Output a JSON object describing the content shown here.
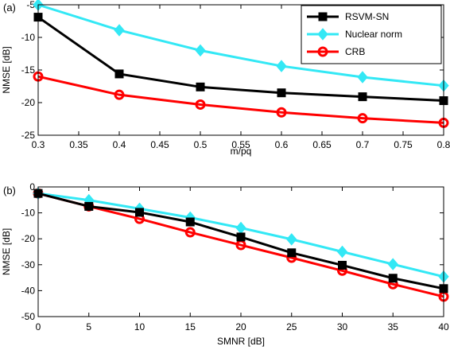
{
  "chart_data": [
    {
      "type": "line",
      "panel_label": "(a)",
      "xlabel": "m/pq",
      "ylabel": "NMSE [dB]",
      "xlim": [
        0.3,
        0.8
      ],
      "ylim": [
        -25,
        -5
      ],
      "xticks": [
        "0.3",
        "0.35",
        "0.4",
        "0.45",
        "0.5",
        "0.55",
        "0.6",
        "0.65",
        "0.7",
        "0.75",
        "0.8"
      ],
      "xtick_values": [
        0.3,
        0.35,
        0.4,
        0.45,
        0.5,
        0.55,
        0.6,
        0.65,
        0.7,
        0.75,
        0.8
      ],
      "yticks": [
        "-25",
        "-20",
        "-15",
        "-10",
        "-5"
      ],
      "ytick_values": [
        -25,
        -20,
        -15,
        -10,
        -5
      ],
      "grid": false,
      "legend_position": "top-right",
      "x": [
        0.3,
        0.4,
        0.5,
        0.6,
        0.7,
        0.8
      ],
      "series": [
        {
          "name": "RSVM-SN",
          "color": "#000000",
          "marker": "square",
          "values": [
            -6.9,
            -15.6,
            -17.6,
            -18.5,
            -19.1,
            -19.7
          ]
        },
        {
          "name": "Nuclear norm",
          "color": "#33e8f5",
          "marker": "diamond",
          "values": [
            -5.0,
            -8.9,
            -12.0,
            -14.4,
            -16.1,
            -17.4
          ]
        },
        {
          "name": "CRB",
          "color": "#ff0000",
          "marker": "circle",
          "values": [
            -16.0,
            -18.8,
            -20.3,
            -21.5,
            -22.4,
            -23.1
          ]
        }
      ]
    },
    {
      "type": "line",
      "panel_label": "(b)",
      "xlabel": "SMNR [dB]",
      "ylabel": "NMSE [dB]",
      "xlim": [
        0,
        40
      ],
      "ylim": [
        -50,
        0
      ],
      "xticks": [
        "0",
        "5",
        "10",
        "15",
        "20",
        "25",
        "30",
        "35",
        "40"
      ],
      "xtick_values": [
        0,
        5,
        10,
        15,
        20,
        25,
        30,
        35,
        40
      ],
      "yticks": [
        "-50",
        "-40",
        "-30",
        "-20",
        "-10",
        "0"
      ],
      "ytick_values": [
        -50,
        -40,
        -30,
        -20,
        -10,
        0
      ],
      "grid": false,
      "x": [
        0,
        5,
        10,
        15,
        20,
        25,
        30,
        35,
        40
      ],
      "series": [
        {
          "name": "RSVM-SN",
          "color": "#000000",
          "marker": "square",
          "values": [
            -2.5,
            -7.5,
            -9.8,
            -13.5,
            -19.3,
            -25.4,
            -30.2,
            -35.2,
            -39.2
          ]
        },
        {
          "name": "Nuclear norm",
          "color": "#33e8f5",
          "marker": "diamond",
          "values": [
            -2.5,
            -5.1,
            -8.4,
            -11.8,
            -15.8,
            -20.2,
            -25.0,
            -29.8,
            -34.6
          ]
        },
        {
          "name": "CRB",
          "color": "#ff0000",
          "marker": "circle",
          "values": [
            -2.5,
            -7.5,
            -12.3,
            -17.5,
            -22.4,
            -27.3,
            -32.3,
            -37.5,
            -42.3
          ]
        }
      ]
    }
  ]
}
